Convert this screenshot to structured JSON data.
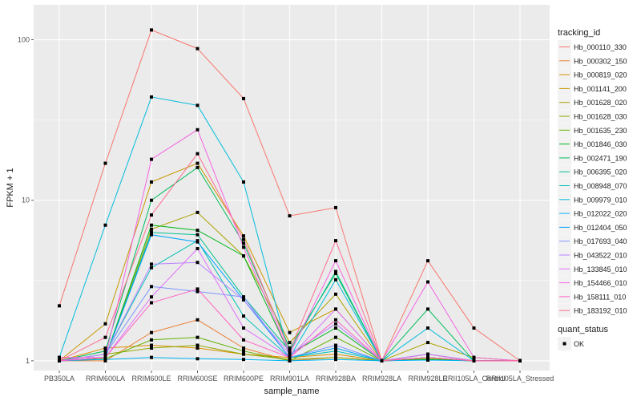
{
  "chart_data": {
    "type": "line",
    "xlabel": "sample_name",
    "ylabel": "FPKM + 1",
    "y_scale": "log10",
    "ylim": [
      0.87,
      165
    ],
    "y_ticks": [
      {
        "value": 1,
        "label": "1"
      },
      {
        "value": 10,
        "label": "10"
      },
      {
        "value": 100,
        "label": "100"
      }
    ],
    "grid": true,
    "legend_position": "right",
    "categories": [
      "PB350LA",
      "RRIM600LA",
      "RRIM600LE",
      "RRIM600SE",
      "RRIM600PE",
      "RRIM901LA",
      "RRIM928BA",
      "RRIM928LA",
      "RRIM928LE",
      "RRII105LA_Control",
      "RRII105LA_Stressed"
    ],
    "legend_title": "tracking_id",
    "series": [
      {
        "name": "Hb_000110_330",
        "color": "#F8766D",
        "values": [
          2.2,
          17,
          115,
          88,
          43,
          8,
          9,
          1,
          4.2,
          1.6,
          1
        ]
      },
      {
        "name": "Hb_000302_150",
        "color": "#EC8239",
        "values": [
          1,
          1,
          1.5,
          1.8,
          1.2,
          1,
          1.05,
          1,
          1.02,
          1,
          1
        ]
      },
      {
        "name": "Hb_000819_020",
        "color": "#DB8E00",
        "values": [
          1,
          1.2,
          1.25,
          1.2,
          1.1,
          1.05,
          1.1,
          1,
          1.05,
          1,
          1
        ]
      },
      {
        "name": "Hb_001141_200",
        "color": "#C79800",
        "values": [
          1,
          1.7,
          13,
          17,
          6,
          1.5,
          2.1,
          1,
          1.1,
          1,
          1
        ]
      },
      {
        "name": "Hb_001628_020",
        "color": "#AEA200",
        "values": [
          1,
          1.05,
          6.6,
          8.4,
          4.5,
          1.3,
          2.6,
          1,
          1.3,
          1.05,
          1
        ]
      },
      {
        "name": "Hb_001628_030",
        "color": "#8FAA00",
        "values": [
          1,
          1.1,
          1.2,
          1.25,
          1.1,
          1.02,
          1.05,
          1,
          1.03,
          1,
          1
        ]
      },
      {
        "name": "Hb_001635_230",
        "color": "#64B200",
        "values": [
          1,
          1.03,
          1.35,
          1.4,
          1.15,
          1,
          1.4,
          1,
          1.02,
          1,
          1
        ]
      },
      {
        "name": "Hb_001846_030",
        "color": "#00B81B",
        "values": [
          1,
          1.05,
          7,
          6.5,
          4.5,
          1.1,
          1.6,
          1,
          1.02,
          1,
          1
        ]
      },
      {
        "name": "Hb_002471_190",
        "color": "#00BD5C",
        "values": [
          1,
          1.15,
          10,
          16,
          5.4,
          1.2,
          3.5,
          1,
          2.1,
          1,
          1
        ]
      },
      {
        "name": "Hb_006395_020",
        "color": "#00C08E",
        "values": [
          1,
          1.05,
          6.3,
          6.1,
          2.5,
          1.15,
          3.6,
          1,
          1.1,
          1,
          1
        ]
      },
      {
        "name": "Hb_008948_070",
        "color": "#00C1B7",
        "values": [
          1,
          1.1,
          3.8,
          5.6,
          1.9,
          1.05,
          1.15,
          1,
          1.05,
          1,
          1
        ]
      },
      {
        "name": "Hb_009979_010",
        "color": "#00BDDC",
        "values": [
          1.05,
          7,
          44,
          39,
          13,
          1.05,
          3.2,
          1,
          1.6,
          1,
          1
        ]
      },
      {
        "name": "Hb_012022_020",
        "color": "#00B4F0",
        "values": [
          1,
          1.02,
          1.05,
          1.03,
          1.02,
          1,
          1.02,
          1,
          1.01,
          1,
          1
        ]
      },
      {
        "name": "Hb_012404_050",
        "color": "#00A5FF",
        "values": [
          1,
          1.05,
          6.1,
          5.5,
          2.4,
          1.05,
          1.2,
          1,
          1.05,
          1,
          1
        ]
      },
      {
        "name": "Hb_017693_040",
        "color": "#7C96FF",
        "values": [
          1,
          1.1,
          2.9,
          2.7,
          2.5,
          1.05,
          1.25,
          1,
          1.1,
          1,
          1
        ]
      },
      {
        "name": "Hb_043522_010",
        "color": "#B983FF",
        "values": [
          1,
          1.1,
          4,
          4.1,
          2.4,
          1.1,
          1.7,
          1,
          1.05,
          1,
          1
        ]
      },
      {
        "name": "Hb_133845_010",
        "color": "#DE71F9",
        "values": [
          1,
          1.05,
          2.5,
          5,
          1.6,
          1.05,
          2.1,
          1,
          1.1,
          1,
          1
        ]
      },
      {
        "name": "Hb_154466_010",
        "color": "#F564E3",
        "values": [
          1.05,
          1.05,
          18,
          27.5,
          5.1,
          1.1,
          4.2,
          1,
          3.1,
          1.05,
          1
        ]
      },
      {
        "name": "Hb_158111_010",
        "color": "#FF61C3",
        "values": [
          1,
          1.05,
          2.3,
          2.8,
          1.35,
          1.05,
          1.8,
          1,
          1.05,
          1,
          1
        ]
      },
      {
        "name": "Hb_183192_010",
        "color": "#FF6C91",
        "values": [
          1,
          1.4,
          8.1,
          19.5,
          5.7,
          1.15,
          5.6,
          1,
          1.05,
          1,
          1
        ]
      }
    ],
    "shape_legend": {
      "title": "quant_status",
      "entries": [
        {
          "label": "OK",
          "shape": "square"
        }
      ]
    }
  }
}
